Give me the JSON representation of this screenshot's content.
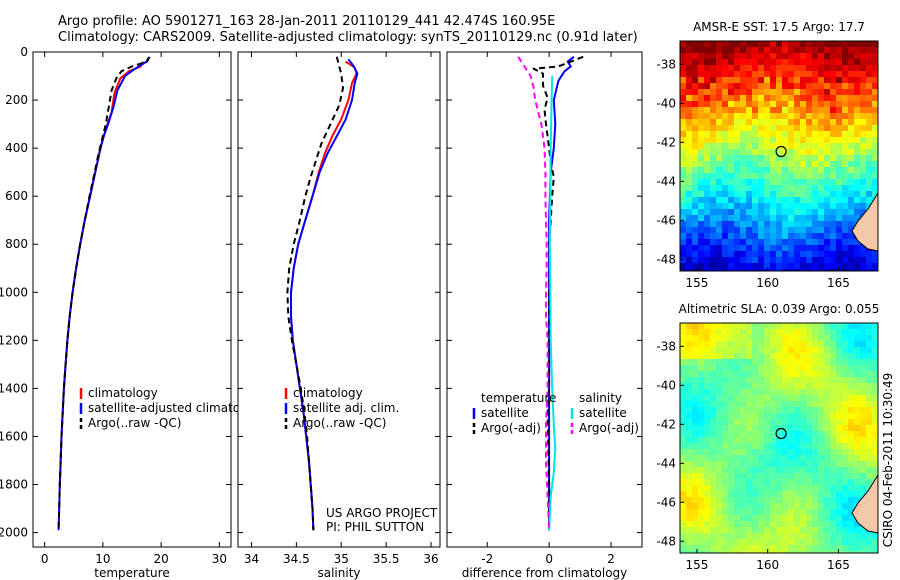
{
  "header": {
    "line1": "Argo profile: AO 5901271_163 28-Jan-2011 20110129_441 42.474S 160.95E",
    "line2": "Climatology: CARS2009. Satellite-adjusted climatology: synTS_20110129.nc (0.91d later)"
  },
  "side_label": "CSIRO 04-Feb-2011 10:30:49",
  "project_note": {
    "line1": "US ARGO PROJECT",
    "line2": "PI: PHIL SUTTON"
  },
  "colors": {
    "climatology": "#ff0000",
    "satellite": "#0000ff",
    "argo": "#000000",
    "sat_diff_salinity": "#00e5e5",
    "argo_diff_salinity": "#ff00ff",
    "land": "#f5c8a8"
  },
  "chart_data": [
    {
      "id": "temperature",
      "type": "line",
      "xlabel": "temperature",
      "ylabel": "",
      "xlim": [
        -2,
        32
      ],
      "ylim": [
        2060,
        0
      ],
      "xticks": [
        0,
        10,
        20,
        30
      ],
      "yticks": [
        0,
        200,
        400,
        600,
        800,
        1000,
        1200,
        1400,
        1600,
        1800,
        2000
      ],
      "legend": {
        "placement": "bottom-center",
        "entries": [
          "climatology",
          "satellite-adjusted climatology",
          "Argo(..raw -QC)"
        ]
      },
      "series": [
        {
          "name": "climatology",
          "color": "#ff0000",
          "dash": "",
          "points": [
            [
              17.0,
              40
            ],
            [
              16.5,
              60
            ],
            [
              14.5,
              80
            ],
            [
              13.0,
              110
            ],
            [
              12.0,
              170
            ],
            [
              11.5,
              250
            ],
            [
              10.5,
              320
            ],
            [
              9.6,
              400
            ],
            [
              8.7,
              500
            ],
            [
              7.8,
              600
            ],
            [
              6.9,
              700
            ],
            [
              6.1,
              800
            ],
            [
              5.4,
              900
            ],
            [
              4.8,
              1000
            ],
            [
              4.3,
              1100
            ],
            [
              3.9,
              1200
            ],
            [
              3.6,
              1300
            ],
            [
              3.3,
              1400
            ],
            [
              3.1,
              1500
            ],
            [
              2.9,
              1600
            ],
            [
              2.75,
              1700
            ],
            [
              2.6,
              1800
            ]
          ]
        },
        {
          "name": "satellite-adjusted climatology",
          "color": "#0000ff",
          "dash": "",
          "points": [
            [
              17.8,
              25
            ],
            [
              17.5,
              40
            ],
            [
              15.5,
              70
            ],
            [
              13.8,
              100
            ],
            [
              12.5,
              160
            ],
            [
              11.8,
              230
            ],
            [
              10.9,
              300
            ],
            [
              10.0,
              360
            ],
            [
              9.4,
              420
            ],
            [
              8.7,
              500
            ],
            [
              7.8,
              600
            ],
            [
              6.9,
              700
            ],
            [
              6.1,
              800
            ],
            [
              5.4,
              900
            ],
            [
              4.8,
              1000
            ],
            [
              4.3,
              1100
            ],
            [
              3.9,
              1200
            ],
            [
              3.6,
              1300
            ],
            [
              3.3,
              1400
            ],
            [
              3.1,
              1500
            ],
            [
              2.9,
              1600
            ],
            [
              2.75,
              1700
            ],
            [
              2.6,
              1800
            ],
            [
              2.5,
              1900
            ],
            [
              2.4,
              1990
            ]
          ]
        },
        {
          "name": "Argo(..raw -QC)",
          "color": "#000000",
          "dash": "6,4",
          "points": [
            [
              18.0,
              20
            ],
            [
              17.6,
              40
            ],
            [
              15.0,
              60
            ],
            [
              13.2,
              80
            ],
            [
              12.3,
              110
            ],
            [
              11.5,
              160
            ],
            [
              11.0,
              230
            ],
            [
              10.5,
              300
            ],
            [
              9.9,
              360
            ],
            [
              9.2,
              430
            ],
            [
              8.6,
              500
            ],
            [
              7.7,
              600
            ],
            [
              6.9,
              700
            ],
            [
              6.1,
              800
            ],
            [
              5.4,
              900
            ],
            [
              4.8,
              1000
            ],
            [
              4.3,
              1100
            ],
            [
              3.9,
              1200
            ],
            [
              3.6,
              1300
            ],
            [
              3.3,
              1400
            ],
            [
              3.1,
              1500
            ],
            [
              2.9,
              1600
            ],
            [
              2.75,
              1700
            ],
            [
              2.6,
              1800
            ],
            [
              2.5,
              1900
            ],
            [
              2.4,
              1990
            ]
          ]
        }
      ]
    },
    {
      "id": "salinity",
      "type": "line",
      "xlabel": "salinity",
      "ylabel": "",
      "xlim": [
        33.85,
        36.1
      ],
      "ylim": [
        2060,
        0
      ],
      "xticks": [
        34,
        34.5,
        35,
        35.5,
        36
      ],
      "legend": {
        "placement": "bottom-center",
        "entries": [
          "climatology",
          "satellite adj. clim.",
          "Argo(..raw -QC)"
        ]
      },
      "series": [
        {
          "name": "climatology",
          "color": "#ff0000",
          "dash": "",
          "points": [
            [
              35.05,
              40
            ],
            [
              35.15,
              65
            ],
            [
              35.17,
              90
            ],
            [
              35.12,
              130
            ],
            [
              35.08,
              200
            ],
            [
              35.0,
              280
            ],
            [
              34.9,
              350
            ],
            [
              34.82,
              420
            ],
            [
              34.75,
              500
            ],
            [
              34.68,
              600
            ],
            [
              34.6,
              700
            ],
            [
              34.52,
              800
            ],
            [
              34.47,
              900
            ],
            [
              34.44,
              1000
            ],
            [
              34.44,
              1100
            ],
            [
              34.46,
              1200
            ],
            [
              34.5,
              1300
            ],
            [
              34.54,
              1400
            ],
            [
              34.58,
              1500
            ],
            [
              34.61,
              1600
            ],
            [
              34.64,
              1700
            ],
            [
              34.66,
              1800
            ],
            [
              34.68,
              1900
            ],
            [
              34.69,
              1990
            ]
          ]
        },
        {
          "name": "satellite adj. clim.",
          "color": "#0000ff",
          "dash": "",
          "points": [
            [
              35.08,
              30
            ],
            [
              35.14,
              60
            ],
            [
              35.18,
              90
            ],
            [
              35.15,
              130
            ],
            [
              35.12,
              200
            ],
            [
              35.05,
              280
            ],
            [
              34.95,
              350
            ],
            [
              34.85,
              420
            ],
            [
              34.76,
              500
            ],
            [
              34.68,
              600
            ],
            [
              34.6,
              700
            ],
            [
              34.52,
              800
            ],
            [
              34.47,
              900
            ],
            [
              34.44,
              1000
            ],
            [
              34.44,
              1100
            ],
            [
              34.46,
              1200
            ],
            [
              34.5,
              1300
            ],
            [
              34.54,
              1400
            ],
            [
              34.58,
              1500
            ],
            [
              34.61,
              1600
            ],
            [
              34.64,
              1700
            ],
            [
              34.66,
              1800
            ],
            [
              34.68,
              1900
            ],
            [
              34.69,
              1990
            ]
          ]
        },
        {
          "name": "Argo(..raw -QC)",
          "color": "#000000",
          "dash": "6,4",
          "points": [
            [
              34.95,
              20
            ],
            [
              34.97,
              50
            ],
            [
              35.0,
              90
            ],
            [
              35.02,
              150
            ],
            [
              34.98,
              220
            ],
            [
              34.88,
              300
            ],
            [
              34.78,
              380
            ],
            [
              34.72,
              450
            ],
            [
              34.66,
              520
            ],
            [
              34.6,
              600
            ],
            [
              34.54,
              700
            ],
            [
              34.47,
              800
            ],
            [
              34.42,
              900
            ],
            [
              34.4,
              1000
            ],
            [
              34.41,
              1100
            ],
            [
              34.45,
              1200
            ],
            [
              34.5,
              1300
            ],
            [
              34.55,
              1400
            ],
            [
              34.59,
              1500
            ],
            [
              34.62,
              1600
            ],
            [
              34.64,
              1700
            ],
            [
              34.66,
              1800
            ],
            [
              34.68,
              1900
            ],
            [
              34.69,
              1990
            ]
          ]
        }
      ]
    },
    {
      "id": "difference",
      "type": "line",
      "xlabel": "difference from climatology",
      "ylabel": "",
      "xlim": [
        -3.3,
        3.0
      ],
      "ylim": [
        2060,
        0
      ],
      "xticks": [
        -2,
        0,
        2
      ],
      "legend": {
        "placement": "bottom",
        "columns": [
          {
            "heading": "temperature",
            "entries": [
              "satellite",
              "Argo(-adj)"
            ]
          },
          {
            "heading": "salinity",
            "entries": [
              "satellite",
              "Argo(-adj)"
            ]
          }
        ]
      },
      "series": [
        {
          "name": "temperature satellite",
          "color": "#0000ff",
          "dash": "",
          "points": [
            [
              0.8,
              20
            ],
            [
              0.6,
              40
            ],
            [
              0.7,
              60
            ],
            [
              0.5,
              80
            ],
            [
              0.3,
              120
            ],
            [
              0.15,
              200
            ],
            [
              0.2,
              300
            ],
            [
              0.15,
              400
            ],
            [
              0.05,
              500
            ],
            [
              0.0,
              700
            ],
            [
              0.0,
              1000
            ],
            [
              0.0,
              1400
            ],
            [
              0.0,
              1800
            ],
            [
              0.0,
              1990
            ]
          ]
        },
        {
          "name": "temperature Argo(-adj)",
          "color": "#000000",
          "dash": "6,4",
          "points": [
            [
              1.1,
              20
            ],
            [
              0.3,
              60
            ],
            [
              -0.5,
              70
            ],
            [
              -0.2,
              90
            ],
            [
              -0.2,
              140
            ],
            [
              -0.05,
              190
            ],
            [
              -0.15,
              240
            ],
            [
              -0.1,
              300
            ],
            [
              0.0,
              400
            ],
            [
              0.05,
              460
            ],
            [
              0.15,
              520
            ],
            [
              0.1,
              600
            ],
            [
              0.05,
              700
            ],
            [
              0.0,
              800
            ],
            [
              0.02,
              900
            ],
            [
              0.0,
              1000
            ],
            [
              0.0,
              1400
            ],
            [
              -0.05,
              1500
            ],
            [
              0.0,
              1800
            ],
            [
              0.0,
              1990
            ]
          ]
        },
        {
          "name": "salinity satellite",
          "color": "#00e5e5",
          "dash": "",
          "points": [
            [
              0.1,
              100
            ],
            [
              0.08,
              200
            ],
            [
              0.05,
              400
            ],
            [
              0.02,
              800
            ],
            [
              0.05,
              1200
            ],
            [
              0.1,
              1400
            ],
            [
              0.15,
              1550
            ],
            [
              0.2,
              1650
            ],
            [
              0.15,
              1750
            ],
            [
              0.05,
              1850
            ],
            [
              0.0,
              1990
            ]
          ]
        },
        {
          "name": "salinity Argo(-adj)",
          "color": "#ff00ff",
          "dash": "6,4",
          "points": [
            [
              -1.0,
              20
            ],
            [
              -0.8,
              60
            ],
            [
              -0.6,
              100
            ],
            [
              -0.5,
              150
            ],
            [
              -0.45,
              200
            ],
            [
              -0.25,
              300
            ],
            [
              -0.15,
              400
            ],
            [
              -0.12,
              500
            ],
            [
              -0.12,
              600
            ],
            [
              -0.1,
              700
            ],
            [
              -0.08,
              800
            ],
            [
              -0.08,
              900
            ],
            [
              -0.1,
              1000
            ],
            [
              -0.1,
              1100
            ],
            [
              -0.05,
              1200
            ],
            [
              -0.05,
              1400
            ],
            [
              -0.1,
              1550
            ],
            [
              -0.1,
              1700
            ],
            [
              0.0,
              1990
            ]
          ]
        }
      ]
    },
    {
      "id": "amsr-sst-map",
      "type": "heatmap",
      "title": "AMSR-E SST: 17.5  Argo: 17.7",
      "xticks": [
        155,
        160,
        165
      ],
      "yticks": [
        -38,
        -40,
        -42,
        -44,
        -46,
        -48
      ],
      "xlim": [
        153.8,
        167.8
      ],
      "ylim": [
        -48.6,
        -36.8
      ],
      "argo_position": [
        160.95,
        -42.47
      ]
    },
    {
      "id": "altimetric-sla-map",
      "type": "heatmap",
      "title": "Altimetric SLA: 0.039  Argo: 0.055",
      "xticks": [
        155,
        160,
        165
      ],
      "yticks": [
        -38,
        -40,
        -42,
        -44,
        -46,
        -48
      ],
      "xlim": [
        153.8,
        167.8
      ],
      "ylim": [
        -48.6,
        -36.8
      ],
      "argo_position": [
        160.95,
        -42.47
      ]
    }
  ]
}
